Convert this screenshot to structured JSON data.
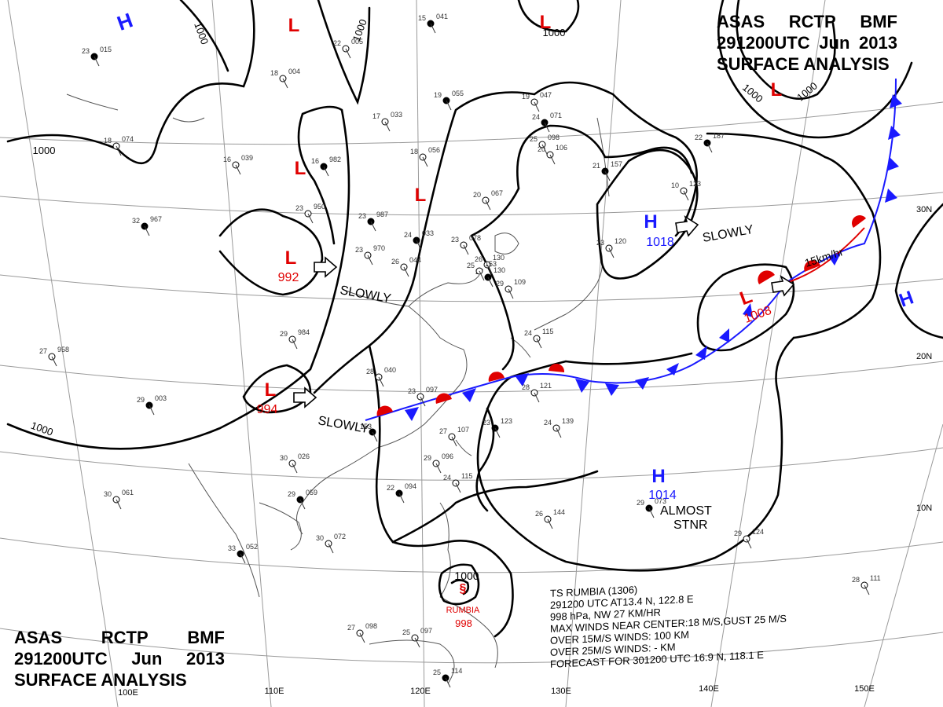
{
  "header": {
    "agency": [
      "ASAS",
      "RCTP",
      "BMF"
    ],
    "valid": [
      "291200UTC",
      "Jun",
      "2013"
    ],
    "product": "SURFACE ANALYSIS"
  },
  "colors": {
    "high": "#1a1aff",
    "low": "#e00000",
    "isobar": "#000000",
    "grid": "#9a9a9a",
    "coast": "#555555"
  },
  "longitudes": [
    "100E",
    "110E",
    "120E",
    "130E",
    "140E",
    "150E"
  ],
  "latitudes": [
    "30N",
    "20N",
    "10N"
  ],
  "isobar_labels": [
    "1000",
    "1000",
    "1000",
    "1000",
    "1000",
    "1000",
    "1000"
  ],
  "systems": [
    {
      "id": "h-nw",
      "type": "H",
      "pressure": ""
    },
    {
      "id": "l-top",
      "type": "L",
      "pressure": ""
    },
    {
      "id": "l-ne",
      "type": "L",
      "pressure": ""
    },
    {
      "id": "l-topright",
      "type": "L",
      "pressure": ""
    },
    {
      "id": "l-center",
      "type": "L",
      "pressure": ""
    },
    {
      "id": "l-mid",
      "type": "L",
      "pressure": ""
    },
    {
      "id": "l-992",
      "type": "L",
      "pressure": "992"
    },
    {
      "id": "l-994",
      "type": "L",
      "pressure": "994"
    },
    {
      "id": "h-1018",
      "type": "H",
      "pressure": "1018"
    },
    {
      "id": "l-1008",
      "type": "L",
      "pressure": "1008"
    },
    {
      "id": "h-east",
      "type": "H",
      "pressure": ""
    },
    {
      "id": "h-1014",
      "type": "H",
      "pressure": "1014"
    }
  ],
  "motions": [
    "SLOWLY",
    "SLOWLY",
    "SLOWLY",
    "SLOWLY",
    "ALMOST",
    "STNR",
    "15km/hr"
  ],
  "storm": {
    "name": "RUMBIA",
    "pressure": "998",
    "isobar": "1000",
    "lines": [
      "TS RUMBIA (1306)",
      "291200 UTC  AT13.4 N, 122.8 E",
      "998 hPa, NW  27 KM/HR",
      "MAX WINDS NEAR CENTER:18 M/S,GUST 25 M/S",
      "OVER 15M/S WINDS: 100 KM",
      "OVER 25M/S WINDS: - KM",
      "FORECAST FOR 301200 UTC 16.9 N, 118.1 E"
    ]
  },
  "station_plots": [
    {
      "t": "23",
      "p": "015"
    },
    {
      "t": "18",
      "p": "004"
    },
    {
      "t": "22",
      "p": "005"
    },
    {
      "t": "15",
      "p": "041"
    },
    {
      "t": "18",
      "p": "074"
    },
    {
      "t": "16",
      "p": "039"
    },
    {
      "t": "16",
      "p": "982"
    },
    {
      "t": "17",
      "p": "033"
    },
    {
      "t": "18",
      "p": "056"
    },
    {
      "t": "19",
      "p": "055"
    },
    {
      "t": "19",
      "p": "047"
    },
    {
      "t": "20",
      "p": "106"
    },
    {
      "t": "21",
      "p": "157"
    },
    {
      "t": "20",
      "p": "067"
    },
    {
      "t": "23",
      "p": "950"
    },
    {
      "t": "23",
      "p": "987"
    },
    {
      "t": "23",
      "p": "970"
    },
    {
      "t": "26",
      "p": "044"
    },
    {
      "t": "24",
      "p": "033"
    },
    {
      "t": "23",
      "p": "078"
    },
    {
      "t": "26",
      "p": "130"
    },
    {
      "t": "32",
      "p": "967"
    },
    {
      "t": "29",
      "p": "984"
    },
    {
      "t": "27",
      "p": "958"
    },
    {
      "t": "29",
      "p": "003"
    },
    {
      "t": "28",
      "p": "040"
    },
    {
      "t": "23",
      "p": "097"
    },
    {
      "t": "153",
      "p": ""
    },
    {
      "t": "27",
      "p": "107"
    },
    {
      "t": "28",
      "p": "121"
    },
    {
      "t": "23",
      "p": "123"
    },
    {
      "t": "24",
      "p": "139"
    },
    {
      "t": "30",
      "p": "026"
    },
    {
      "t": "29",
      "p": "059"
    },
    {
      "t": "29",
      "p": "096"
    },
    {
      "t": "24",
      "p": "115"
    },
    {
      "t": "22",
      "p": "094"
    },
    {
      "t": "30",
      "p": "061"
    },
    {
      "t": "30",
      "p": "072"
    },
    {
      "t": "33",
      "p": "052"
    },
    {
      "t": "27",
      "p": "098"
    },
    {
      "t": "25",
      "p": "097"
    },
    {
      "t": "25",
      "p": "114"
    },
    {
      "t": "26",
      "p": "144"
    },
    {
      "t": "29",
      "p": "124"
    },
    {
      "t": "29",
      "p": "073"
    },
    {
      "t": "28",
      "p": "111"
    },
    {
      "t": "24",
      "p": "115"
    },
    {
      "t": "27",
      "p": "130"
    },
    {
      "t": "25",
      "p": "153"
    },
    {
      "t": "29",
      "p": "109"
    },
    {
      "t": "22",
      "p": "187"
    },
    {
      "t": "10",
      "p": "123"
    },
    {
      "t": "23",
      "p": "120"
    },
    {
      "t": "24",
      "p": "071"
    },
    {
      "t": "25",
      "p": "098"
    }
  ]
}
